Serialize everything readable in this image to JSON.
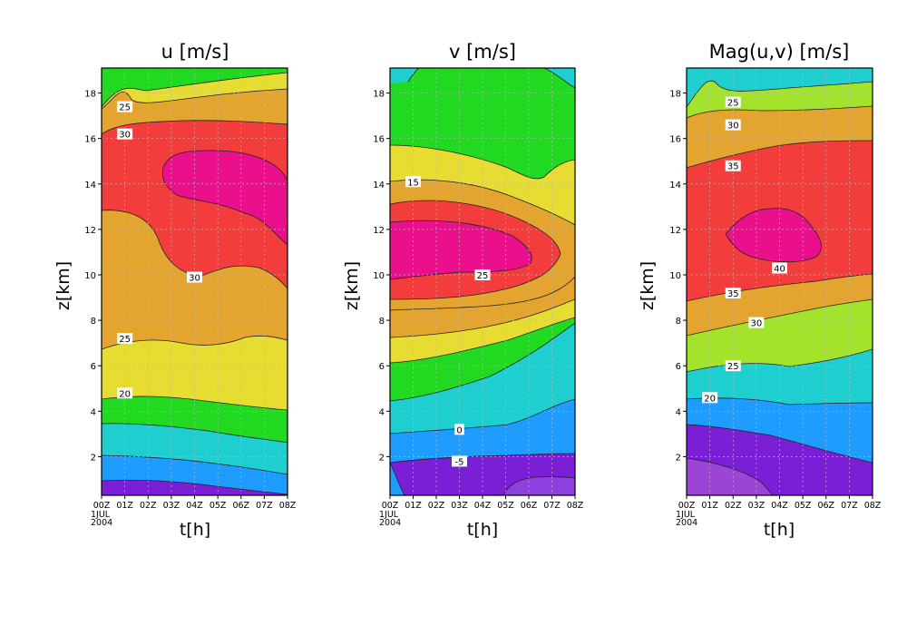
{
  "chart_data": [
    {
      "type": "heatmap",
      "title": "u [m/s]",
      "xlabel": "t[h]",
      "ylabel": "z[km]",
      "x_ticks": [
        "00Z",
        "01Z",
        "02Z",
        "03Z",
        "04Z",
        "05Z",
        "06Z",
        "07Z",
        "08Z"
      ],
      "x_subtick_lines": [
        "1JUL",
        "2004"
      ],
      "y_ticks": [
        "2",
        "4",
        "6",
        "8",
        "10",
        "12",
        "14",
        "16",
        "18"
      ],
      "xlim": [
        0,
        8
      ],
      "ylim": [
        0.3,
        19.1
      ],
      "grid": true,
      "levels": [
        {
          "range": "< 10",
          "color": "#7a1fd6"
        },
        {
          "range": "10-12.5",
          "color": "#1e9cff"
        },
        {
          "range": "12.5-15",
          "color": "#1fcfcf"
        },
        {
          "range": "15-17.5",
          "color": "#22d922"
        },
        {
          "range": "17.5-20",
          "color": "#a3e32b"
        },
        {
          "range": "20-22.5",
          "color": "#e6dc32"
        },
        {
          "range": "22.5-27.5",
          "color": "#e3a52f"
        },
        {
          "range": "27.5-32.5",
          "color": "#f33d3d"
        },
        {
          "range": "> 32.5",
          "color": "#ea0f8a"
        }
      ],
      "contour_labels": [
        {
          "text": "25",
          "t": 1.0,
          "z": 17.4
        },
        {
          "text": "30",
          "t": 1.0,
          "z": 16.2
        },
        {
          "text": "30",
          "t": 4.0,
          "z": 9.9
        },
        {
          "text": "25",
          "t": 1.0,
          "z": 7.2
        },
        {
          "text": "20",
          "t": 1.0,
          "z": 4.8
        }
      ]
    },
    {
      "type": "heatmap",
      "title": "v [m/s]",
      "xlabel": "t[h]",
      "ylabel": "z[km]",
      "x_ticks": [
        "00Z",
        "01Z",
        "02Z",
        "03Z",
        "04Z",
        "05Z",
        "06Z",
        "07Z",
        "08Z"
      ],
      "x_subtick_lines": [
        "1JUL",
        "2004"
      ],
      "y_ticks": [
        "2",
        "4",
        "6",
        "8",
        "10",
        "12",
        "14",
        "16",
        "18"
      ],
      "xlim": [
        0,
        8
      ],
      "ylim": [
        0.3,
        19.1
      ],
      "grid": true,
      "levels": [
        {
          "range": "< -5",
          "color": "#7a1fd6"
        },
        {
          "range": "-5-0",
          "color": "#1e9cff"
        },
        {
          "range": "0-5",
          "color": "#1fcfcf"
        },
        {
          "range": "5-10",
          "color": "#22d922"
        },
        {
          "range": "10-15",
          "color": "#e6dc32"
        },
        {
          "range": "15-20",
          "color": "#e3a52f"
        },
        {
          "range": "20-25",
          "color": "#f33d3d"
        },
        {
          "range": "> 25",
          "color": "#ea0f8a"
        }
      ],
      "contour_labels": [
        {
          "text": "15",
          "t": 1.0,
          "z": 14.1
        },
        {
          "text": "25",
          "t": 4.0,
          "z": 10.0
        },
        {
          "text": "0",
          "t": 3.0,
          "z": 3.2
        },
        {
          "text": "-5",
          "t": 3.0,
          "z": 1.8
        }
      ]
    },
    {
      "type": "heatmap",
      "title": "Mag(u,v) [m/s]",
      "xlabel": "t[h]",
      "ylabel": "z[km]",
      "x_ticks": [
        "00Z",
        "01Z",
        "02Z",
        "03Z",
        "04Z",
        "05Z",
        "06Z",
        "07Z",
        "08Z"
      ],
      "x_subtick_lines": [
        "1JUL",
        "2004"
      ],
      "y_ticks": [
        "2",
        "4",
        "6",
        "8",
        "10",
        "12",
        "14",
        "16",
        "18"
      ],
      "xlim": [
        0,
        8
      ],
      "ylim": [
        0.3,
        19.1
      ],
      "grid": true,
      "levels": [
        {
          "range": "< 15",
          "color": "#7a1fd6"
        },
        {
          "range": "15-20",
          "color": "#1e9cff"
        },
        {
          "range": "20-25",
          "color": "#1fcfcf"
        },
        {
          "range": "25-30",
          "color": "#a3e32b"
        },
        {
          "range": "30-35",
          "color": "#e3a52f"
        },
        {
          "range": "35-40",
          "color": "#f33d3d"
        },
        {
          "range": "> 40",
          "color": "#ea0f8a"
        }
      ],
      "contour_labels": [
        {
          "text": "25",
          "t": 2.0,
          "z": 17.6
        },
        {
          "text": "30",
          "t": 2.0,
          "z": 16.6
        },
        {
          "text": "35",
          "t": 2.0,
          "z": 14.8
        },
        {
          "text": "40",
          "t": 4.0,
          "z": 10.3
        },
        {
          "text": "35",
          "t": 2.0,
          "z": 9.2
        },
        {
          "text": "30",
          "t": 3.0,
          "z": 7.9
        },
        {
          "text": "25",
          "t": 2.0,
          "z": 6.0
        },
        {
          "text": "20",
          "t": 1.0,
          "z": 4.6
        }
      ]
    }
  ]
}
